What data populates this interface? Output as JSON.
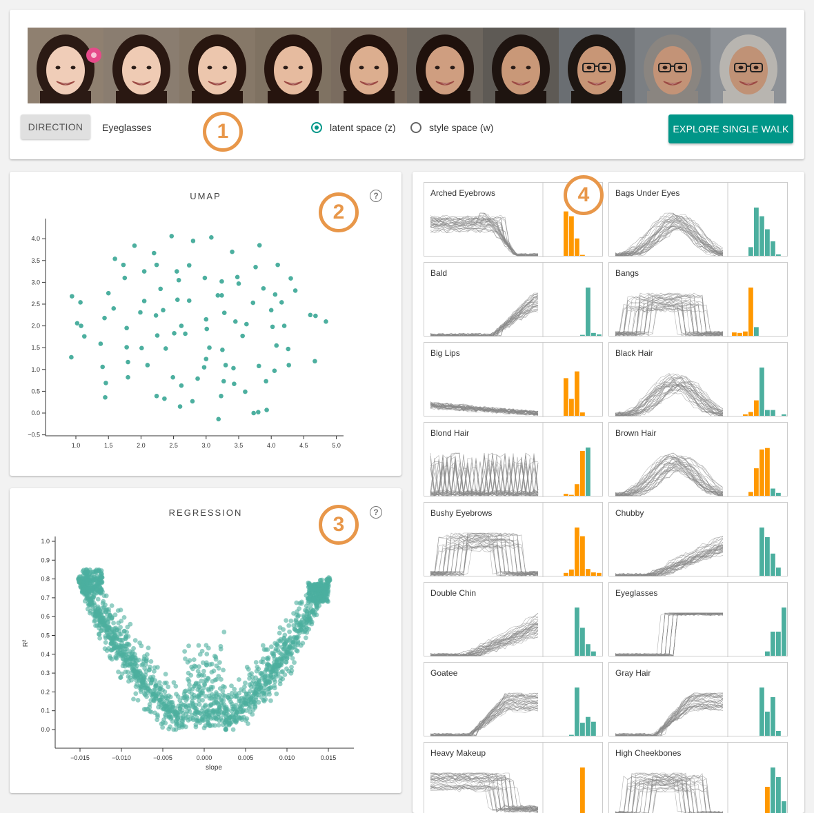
{
  "controls": {
    "direction_label": "DIRECTION",
    "direction_value": "Eyeglasses",
    "radio_latent": "latent space (z)",
    "radio_style": "style space (w)",
    "selected_space": "latent",
    "explore_label": "EXPLORE SINGLE WALK"
  },
  "faces": [
    {
      "skin": "#f0cdb8",
      "hair": "#2b1a14",
      "bg": "#8f8070",
      "glasses": false,
      "flower": true
    },
    {
      "skin": "#efcbb4",
      "hair": "#2a1812",
      "bg": "#8a7d70",
      "glasses": false,
      "flower": false
    },
    {
      "skin": "#ecc6ad",
      "hair": "#28160f",
      "bg": "#867868",
      "glasses": false,
      "flower": false
    },
    {
      "skin": "#e6bb9f",
      "hair": "#26140e",
      "bg": "#7f7262",
      "glasses": false,
      "flower": false
    },
    {
      "skin": "#dcae8f",
      "hair": "#24130d",
      "bg": "#7a6c5f",
      "glasses": false,
      "flower": false
    },
    {
      "skin": "#cf9e80",
      "hair": "#1f110c",
      "bg": "#6d665e",
      "glasses": false,
      "flower": false
    },
    {
      "skin": "#c99878",
      "hair": "#1e1410",
      "bg": "#5e5a55",
      "glasses": false,
      "flower": false
    },
    {
      "skin": "#c89676",
      "hair": "#1d1612",
      "bg": "#6a6e72",
      "glasses": true,
      "flower": false
    },
    {
      "skin": "#c39377",
      "hair": "#8a8580",
      "bg": "#7b7f83",
      "glasses": true,
      "flower": false
    },
    {
      "skin": "#c09276",
      "hair": "#b8b5b0",
      "bg": "#8d9196",
      "glasses": true,
      "flower": false
    }
  ],
  "badges": [
    "1",
    "2",
    "3",
    "4"
  ],
  "umap": {
    "title": "UMAP",
    "help": "?",
    "x_ticks": [
      "1.0",
      "1.5",
      "2.0",
      "2.5",
      "3.0",
      "3.5",
      "4.0",
      "4.5",
      "5.0"
    ],
    "y_ticks": [
      "4.0",
      "3.5",
      "3.0",
      "2.5",
      "2.0",
      "1.5",
      "1.0",
      "0.5",
      "0.0",
      "−0.5"
    ],
    "point_color": "#4caf9f"
  },
  "regression": {
    "title": "REGRESSION",
    "help": "?",
    "x_ticks": [
      "−0.015",
      "−0.010",
      "−0.005",
      "0.000",
      "0.005",
      "0.010",
      "0.015"
    ],
    "y_ticks": [
      "1.0",
      "0.9",
      "0.8",
      "0.7",
      "0.6",
      "0.5",
      "0.4",
      "0.3",
      "0.2",
      "0.1",
      "0.0"
    ],
    "xlabel": "slope",
    "ylabel": "R²",
    "point_color": "#4caf9f"
  },
  "attributes": [
    {
      "label": "Arched Eyebrows",
      "hist": [
        0.0,
        0.0,
        0.0,
        0.92,
        0.82,
        0.36,
        0.02
      ],
      "color": "#ff9800",
      "shape": "early"
    },
    {
      "label": "Bags Under Eyes",
      "hist": [
        0.0,
        0.0,
        0.0,
        0.18,
        1.0,
        0.82,
        0.55,
        0.3,
        0.03
      ],
      "color": "#4caf9f",
      "hide": 3,
      "shape": "mid"
    },
    {
      "label": "Bald",
      "hist": [
        0,
        0,
        0,
        0,
        0,
        0,
        0.02,
        1.0,
        0.06,
        0.03
      ],
      "color": "#4caf9f",
      "hide": 6,
      "shape": "late-sparse"
    },
    {
      "label": "Bangs",
      "hist": [
        0.07,
        0.06,
        0.09,
        1.0,
        0.18
      ],
      "color": "#4caf9f",
      "hide": 4,
      "shape": "plateau"
    },
    {
      "label": "Big Lips",
      "hist": [
        0.0,
        0.0,
        0.0,
        0.78,
        0.35,
        0.92,
        0.07
      ],
      "color": "#ff9800",
      "shape": "low"
    },
    {
      "label": "Black Hair",
      "hist": [
        0.0,
        0.0,
        0.03,
        0.08,
        0.32,
        1.0,
        0.12,
        0.12,
        0,
        0.03
      ],
      "color": "#4caf9f",
      "hide": 5,
      "shape": "mid-dense"
    },
    {
      "label": "Blond Hair",
      "hist": [
        0,
        0,
        0,
        0.04,
        0.02,
        0.24,
        0.93,
        1.0
      ],
      "color": "#4caf9f",
      "hide": 7,
      "shape": "spiky"
    },
    {
      "label": "Brown Hair",
      "hist": [
        0,
        0,
        0,
        0.08,
        0.57,
        0.96,
        0.99,
        0.15,
        0.06
      ],
      "color": "#4caf9f",
      "hide": 7,
      "shape": "mid-dense"
    },
    {
      "label": "Bushy Eyebrows",
      "hist": [
        0,
        0,
        0,
        0.06,
        0.13,
        1.0,
        0.82,
        0.14,
        0.07,
        0.06
      ],
      "color": "#ff9800",
      "shape": "plateau-mid"
    },
    {
      "label": "Chubby",
      "hist": [
        0,
        0,
        0,
        0,
        0,
        1.0,
        0.8,
        0.46,
        0.17
      ],
      "color": "#4caf9f",
      "hide": 0,
      "shape": "late"
    },
    {
      "label": "Double Chin",
      "hist": [
        0,
        0,
        0,
        0,
        0,
        1.0,
        0.58,
        0.24,
        0.09
      ],
      "color": "#4caf9f",
      "hide": 0,
      "shape": "late"
    },
    {
      "label": "Eyeglasses",
      "hist": [
        0,
        0,
        0,
        0,
        0,
        0,
        0.09,
        0.5,
        0.5,
        1.0
      ],
      "color": "#4caf9f",
      "hide": 0,
      "shape": "step"
    },
    {
      "label": "Goatee",
      "hist": [
        0,
        0,
        0,
        0,
        0.02,
        1.0,
        0.27,
        0.39,
        0.29
      ],
      "color": "#4caf9f",
      "hide": 0,
      "shape": "late-high"
    },
    {
      "label": "Gray Hair",
      "hist": [
        0,
        0,
        0,
        0,
        0,
        1.0,
        0.5,
        0.8,
        0.1
      ],
      "color": "#4caf9f",
      "hide": 0,
      "shape": "late-high"
    },
    {
      "label": "Heavy Makeup",
      "hist": [
        0,
        0,
        0,
        0,
        0,
        0,
        1.0,
        0,
        0
      ],
      "color": "#ff9800",
      "shape": "early-high"
    },
    {
      "label": "High Cheekbones",
      "hist": [
        0,
        0,
        0,
        0,
        0,
        0,
        0.6,
        1.0,
        0.8,
        0.3
      ],
      "color": "#4caf9f",
      "hide": 7,
      "shape": "plateau"
    }
  ]
}
